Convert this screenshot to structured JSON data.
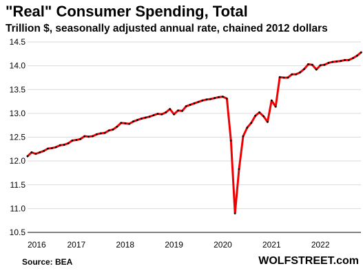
{
  "title": "\"Real\" Consumer Spending, Total",
  "subtitle": "Trillion $, seasonally adjusted annual rate, chained 2012 dollars",
  "source": "Source: BEA",
  "brand": "WOLFSTREET.com",
  "colors": {
    "line": "#ee0000",
    "markers": "#000000",
    "grid": "#d9d9d9"
  },
  "chart_data": {
    "type": "line",
    "title": "\"Real\" Consumer Spending, Total",
    "subtitle": "Trillion $, seasonally adjusted annual rate, chained 2012 dollars",
    "xlabel": "",
    "ylabel": "",
    "ylim": [
      10.5,
      14.5
    ],
    "yticks": [
      10.5,
      11.0,
      11.5,
      12.0,
      12.5,
      13.0,
      13.5,
      14.0,
      14.5
    ],
    "ytick_labels": [
      "10.5",
      "11.0",
      "11.5",
      "12.0",
      "12.5",
      "13.0",
      "13.5",
      "14.0",
      "14.5"
    ],
    "xlim": [
      2016.0,
      2022.83
    ],
    "xticks": [
      2016,
      2017,
      2018,
      2019,
      2020,
      2021,
      2022
    ],
    "xtick_labels": [
      "2016",
      "2017",
      "2018",
      "2019",
      "2020",
      "2021",
      "2022"
    ],
    "grid": "horizontal",
    "legend": "none",
    "series": [
      {
        "x": [
          2016.0,
          2016.083,
          2016.167,
          2016.25,
          2016.333,
          2016.417,
          2016.5,
          2016.583,
          2016.667,
          2016.75,
          2016.833,
          2016.917,
          2017.0,
          2017.083,
          2017.167,
          2017.25,
          2017.333,
          2017.417,
          2017.5,
          2017.583,
          2017.667,
          2017.75,
          2017.833,
          2017.917,
          2018.0,
          2018.083,
          2018.167,
          2018.25,
          2018.333,
          2018.417,
          2018.5,
          2018.583,
          2018.667,
          2018.75,
          2018.833,
          2018.917,
          2019.0,
          2019.083,
          2019.167,
          2019.25,
          2019.333,
          2019.417,
          2019.5,
          2019.583,
          2019.667,
          2019.75,
          2019.833,
          2019.917,
          2020.0,
          2020.083,
          2020.167,
          2020.25,
          2020.333,
          2020.417,
          2020.5,
          2020.583,
          2020.667,
          2020.75,
          2020.833,
          2020.917,
          2021.0,
          2021.083,
          2021.167,
          2021.25,
          2021.333,
          2021.417,
          2021.5,
          2021.583,
          2021.667,
          2021.75,
          2021.833,
          2021.917,
          2022.0,
          2022.083,
          2022.167,
          2022.25,
          2022.333,
          2022.417,
          2022.5,
          2022.583,
          2022.667,
          2022.75,
          2022.833
        ],
        "values": [
          12.1,
          12.18,
          12.15,
          12.18,
          12.21,
          12.26,
          12.27,
          12.29,
          12.33,
          12.34,
          12.37,
          12.43,
          12.44,
          12.46,
          12.52,
          12.51,
          12.52,
          12.56,
          12.58,
          12.59,
          12.64,
          12.66,
          12.72,
          12.8,
          12.79,
          12.78,
          12.83,
          12.86,
          12.89,
          12.91,
          12.93,
          12.96,
          12.99,
          12.98,
          13.02,
          13.09,
          12.98,
          13.06,
          13.05,
          13.15,
          13.18,
          13.21,
          13.24,
          13.27,
          13.29,
          13.3,
          13.32,
          13.34,
          13.35,
          13.31,
          12.43,
          10.9,
          11.83,
          12.52,
          12.7,
          12.8,
          12.95,
          13.02,
          12.94,
          12.82,
          13.27,
          13.14,
          13.76,
          13.75,
          13.75,
          13.82,
          13.82,
          13.86,
          13.93,
          14.03,
          14.02,
          13.92,
          14.01,
          14.02,
          14.06,
          14.08,
          14.09,
          14.1,
          14.12,
          14.12,
          14.16,
          14.21,
          14.28
        ]
      }
    ]
  }
}
